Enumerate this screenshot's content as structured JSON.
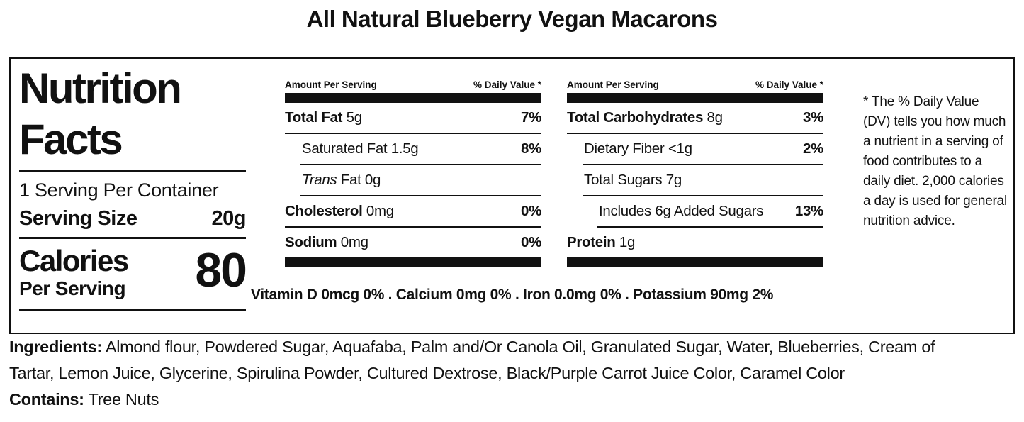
{
  "colors": {
    "text": "#111111",
    "background": "#ffffff",
    "bar": "#111111"
  },
  "title": "All Natural Blueberry Vegan Macarons",
  "label": {
    "heading": "Nutrition Facts",
    "servings_per_container": "1 Serving Per Container",
    "serving_size": {
      "label": "Serving Size",
      "value": "20g"
    },
    "calories": {
      "label": "Calories",
      "sublabel": "Per Serving",
      "value": "80"
    }
  },
  "panels": [
    {
      "header_left": "Amount Per Serving",
      "header_right": "% Daily Value *",
      "rows": [
        {
          "bold": "Total Fat",
          "normal": " 5g",
          "dv": "7%"
        },
        {
          "normal": "Saturated Fat 1.5g",
          "dv": "8%"
        },
        {
          "italic": "Trans",
          "normal": " Fat 0g"
        },
        {
          "bold": "Cholesterol",
          "normal": " 0mg",
          "dv": "0%"
        },
        {
          "bold": "Sodium",
          "normal": " 0mg",
          "dv": "0%"
        }
      ]
    },
    {
      "header_left": "Amount Per Serving",
      "header_right": "% Daily Value *",
      "rows": [
        {
          "bold": "Total Carbohydrates",
          "normal": " 8g",
          "dv": "3%"
        },
        {
          "normal": "Dietary Fiber <1g",
          "dv": "2%"
        },
        {
          "normal": "Total Sugars 7g"
        },
        {
          "normal": "Includes 6g Added Sugars",
          "dv": "13%"
        },
        {
          "bold": "Protein",
          "normal": " 1g"
        }
      ]
    }
  ],
  "micronutrients_line": "Vitamin D 0mcg 0% . Calcium 0mg 0% . Iron 0.0mg 0% . Potassium 90mg 2%",
  "footnote": "* The % Daily Value (DV) tells you how much a nutrient in a serving of food contributes to a daily diet. 2,000 calories a day is used for general nutrition advice.",
  "ingredients": {
    "label": "Ingredients:",
    "line1": " Almond flour, Powdered Sugar, Aquafaba, Palm and/Or Canola Oil, Granulated Sugar, Water, Blueberries, Cream of",
    "line2": "Tartar, Lemon Juice, Glycerine, Spirulina Powder, Cultured Dextrose, Black/Purple Carrot Juice Color, Caramel Color"
  },
  "contains": {
    "label": "Contains:",
    "text": " Tree Nuts"
  }
}
